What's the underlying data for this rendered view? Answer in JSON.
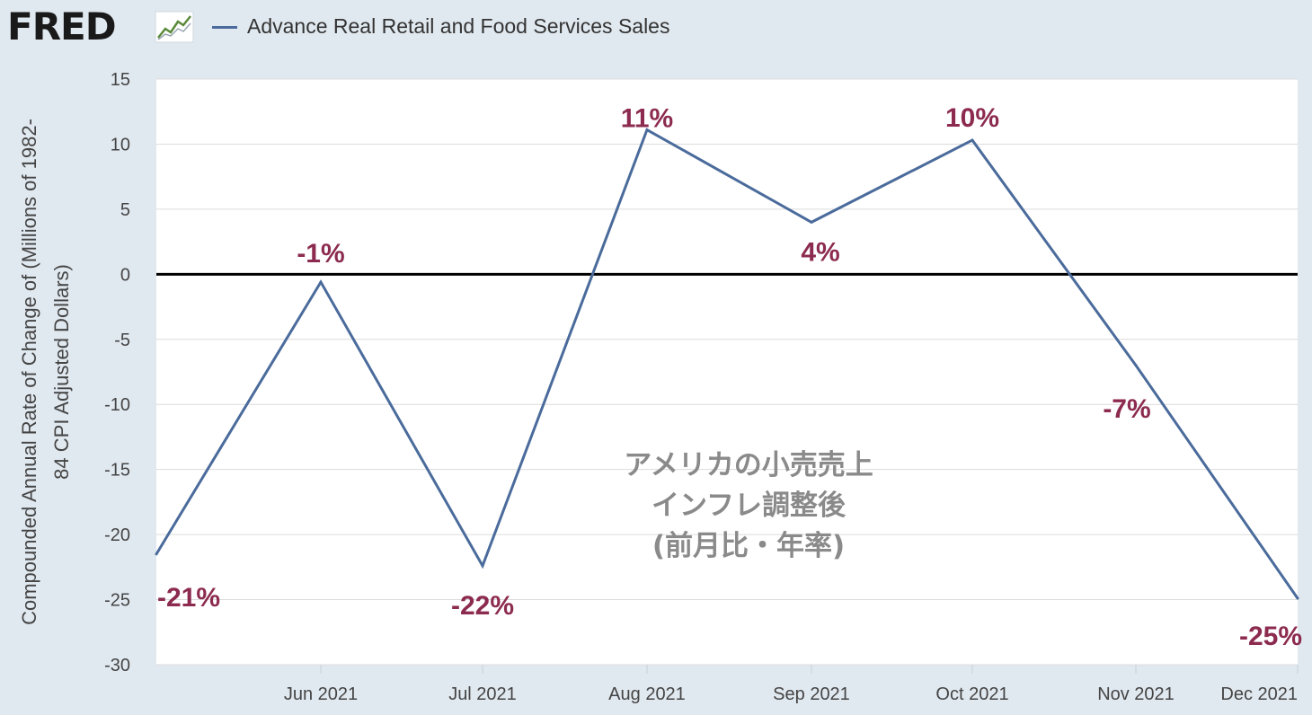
{
  "header": {
    "logo_text": "FRED",
    "logo_icon": "line-chart-icon",
    "legend_label": "Advance Real Retail and Food Services Sales"
  },
  "chart_data": {
    "type": "line",
    "x": [
      "2021-05",
      "2021-06",
      "2021-07",
      "2021-08",
      "2021-09",
      "2021-10",
      "2021-11",
      "2021-12"
    ],
    "series": [
      {
        "values": [
          -21.5,
          -0.6,
          -22.4,
          11.1,
          4.0,
          10.3,
          -7.0,
          -24.9
        ]
      }
    ],
    "xticks": [
      "Jun 2021",
      "Jul 2021",
      "Aug 2021",
      "Sep 2021",
      "Oct 2021",
      "Nov 2021",
      "Dec 2021"
    ],
    "yticks": [
      15,
      10,
      5,
      0,
      -5,
      -10,
      -15,
      -20,
      -25,
      -30
    ],
    "ylim": [
      -30,
      15
    ],
    "ylabel_lines": [
      "Compounded Annual Rate of Change of (Millions of 1982-",
      "84 CPI Adjusted Dollars)"
    ],
    "grid": true,
    "data_labels": [
      "-21%",
      "-1%",
      "-22%",
      "11%",
      "4%",
      "10%",
      "-7%",
      "-25%"
    ],
    "annotation_lines": [
      "アメリカの小売売上",
      "インフレ調整後",
      "(前月比・年率)"
    ],
    "colors": {
      "line": "#4a6b9b",
      "zero_line": "#000000",
      "label": "#8c2b4f",
      "annotation": "#8a8a8a",
      "grid": "#dcdcdc"
    }
  }
}
